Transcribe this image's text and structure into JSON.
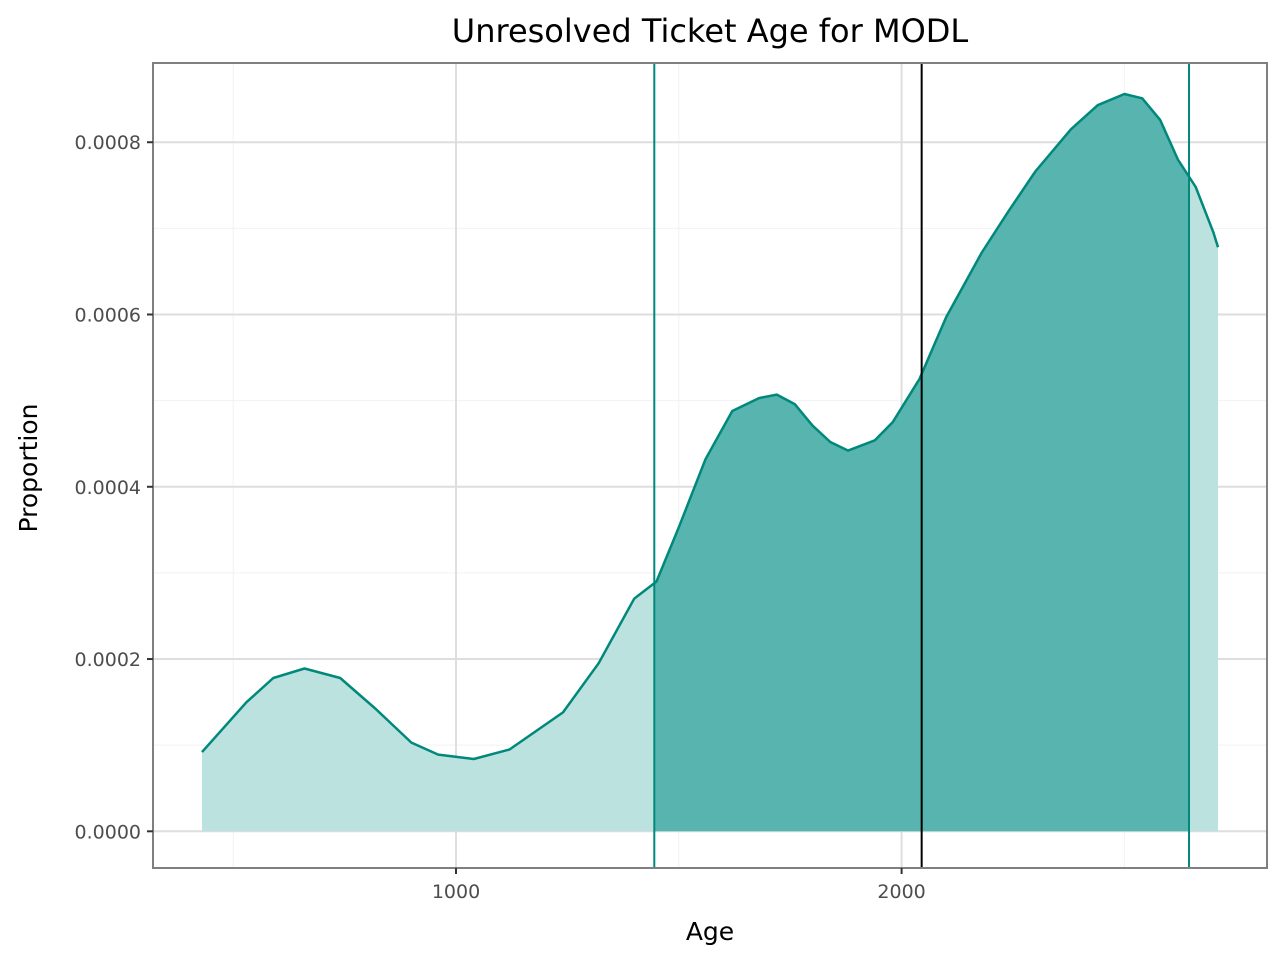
{
  "chart_data": {
    "type": "area",
    "title": "Unresolved Ticket Age for MODL",
    "xlabel": "Age",
    "ylabel": "Proportion",
    "xlim": [
      320,
      2820
    ],
    "ylim": [
      -4.26e-05,
      0.000892
    ],
    "x_ticks": [
      1000,
      2000
    ],
    "x_tick_labels": [
      "1000",
      "2000"
    ],
    "y_ticks": [
      0,
      0.0002,
      0.0004,
      0.0006,
      0.0008
    ],
    "y_tick_labels": [
      "0.0000",
      "0.0002",
      "0.0004",
      "0.0006",
      "0.0008"
    ],
    "x_minor_ticks": [
      500,
      1500,
      2500
    ],
    "y_minor_ticks": [
      0.0001,
      0.0003,
      0.0005,
      0.0007
    ],
    "grid": true,
    "series": [
      {
        "x": [
          430,
          530,
          590,
          660,
          740,
          820,
          900,
          960,
          1040,
          1120,
          1240,
          1320,
          1400,
          1450,
          1500,
          1560,
          1620,
          1680,
          1720,
          1760,
          1800,
          1840,
          1880,
          1940,
          1980,
          2040,
          2100,
          2180,
          2240,
          2300,
          2380,
          2440,
          2500,
          2540,
          2580,
          2620,
          2660,
          2700,
          2710
        ],
        "y": [
          9.2e-05,
          0.00015,
          0.000178,
          0.000189,
          0.000178,
          0.000142,
          0.000103,
          8.9e-05,
          8.4e-05,
          9.5e-05,
          0.000138,
          0.000195,
          0.00027,
          0.00029,
          0.000353,
          0.000432,
          0.000488,
          0.000503,
          0.000507,
          0.000496,
          0.000471,
          0.000452,
          0.000442,
          0.000454,
          0.000475,
          0.000525,
          0.000597,
          0.000672,
          0.00072,
          0.000766,
          0.000815,
          0.000843,
          0.000856,
          0.000851,
          0.000826,
          0.00078,
          0.000748,
          0.000695,
          0.000678
        ]
      }
    ],
    "shaded_interval": [
      1445,
      2645
    ],
    "interval_lines": [
      1445,
      2645
    ],
    "median_line": 2045,
    "colors": {
      "curve": "#00897b",
      "fill_light": "#bce2df",
      "fill_dark": "#58b4ae",
      "median": "#000000",
      "grid": "#dedede",
      "panel_border": "#7f7f7f"
    }
  }
}
